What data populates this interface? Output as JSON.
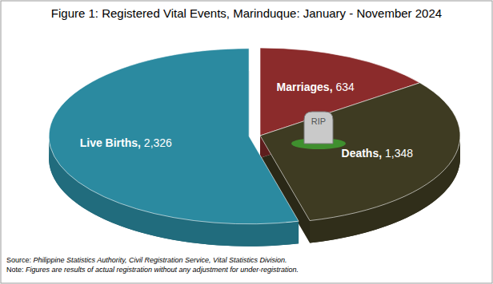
{
  "chart_data": {
    "type": "pie",
    "title": "Figure 1: Registered Vital Events, Marinduque: January - November 2024",
    "categories": [
      "Marriages",
      "Deaths",
      "Live Births"
    ],
    "values": [
      634,
      1348,
      2326
    ],
    "value_labels": [
      "634",
      "1,348",
      "2,326"
    ],
    "colors": [
      "#8b2b2b",
      "#3e3b22",
      "#2b8aa0"
    ],
    "data_labels": true,
    "annotations": [
      "RIP"
    ],
    "source": "Source: Philippine Statistics Authority, Civil Registration Service, Vital Statistics Division.",
    "note": "Note: Figures are results of actual registration without any adjustment for under-registration."
  }
}
